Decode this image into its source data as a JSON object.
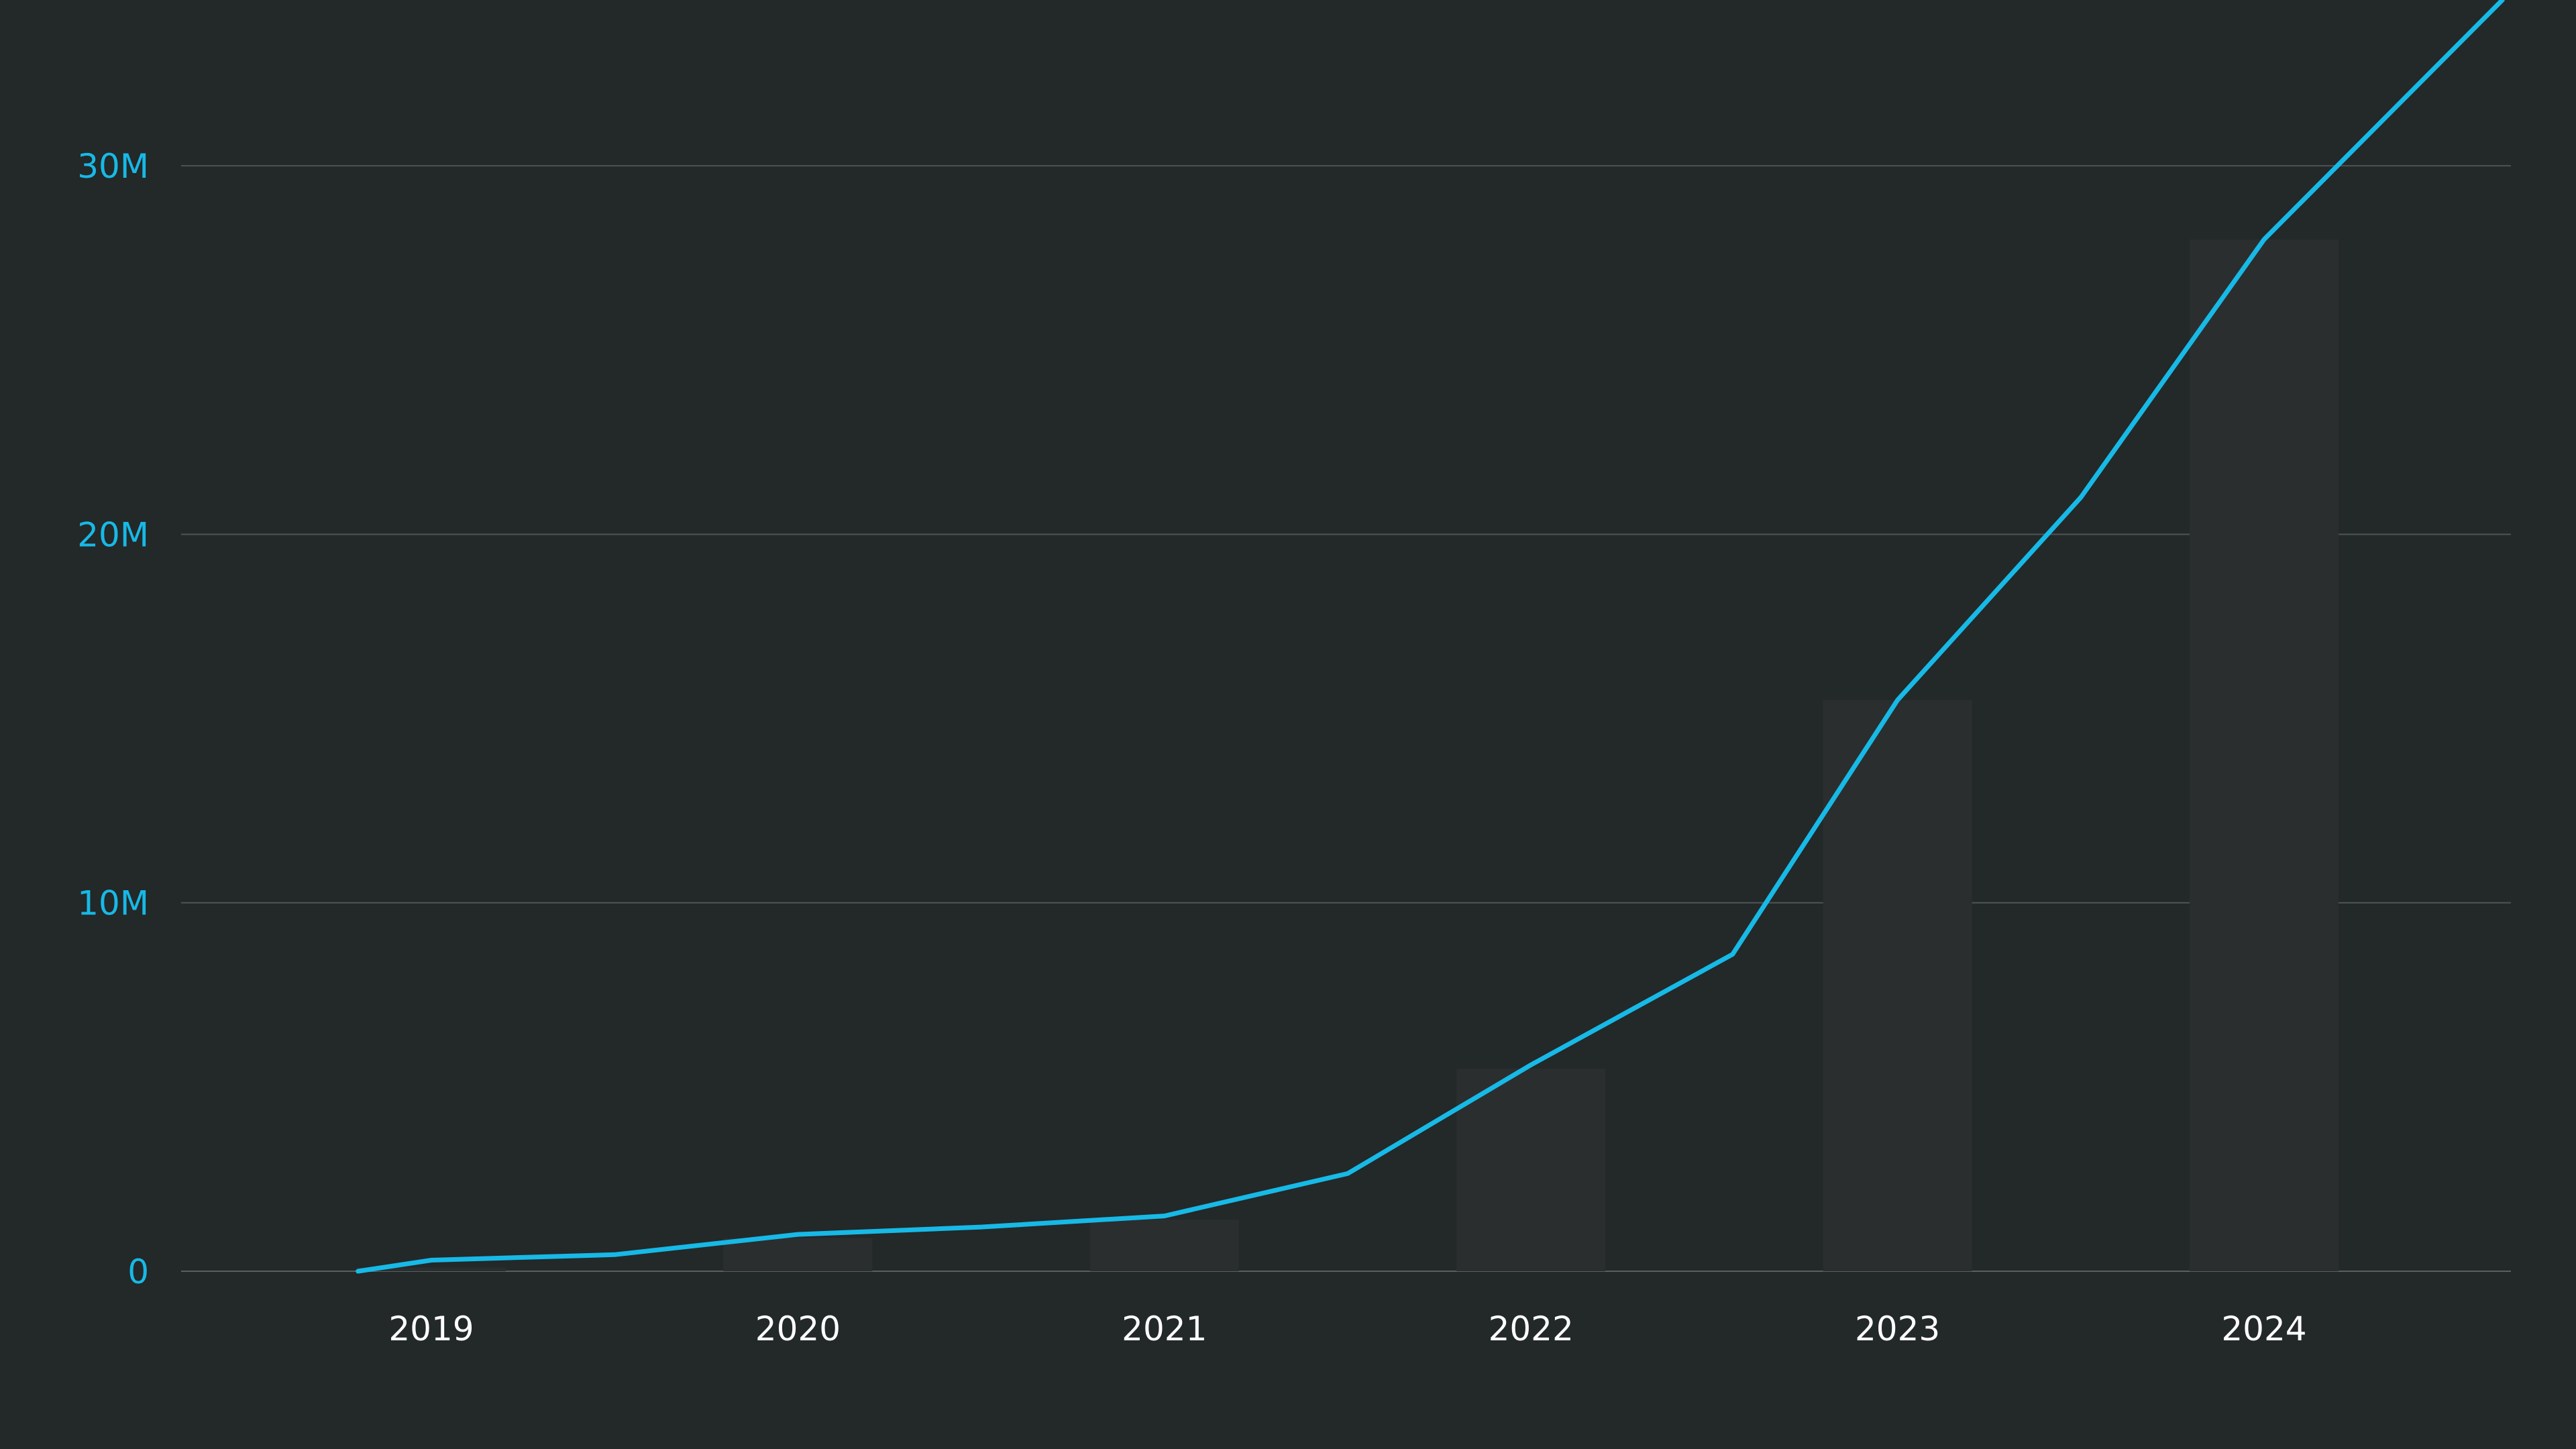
{
  "chart_data": {
    "type": "bar",
    "title": "",
    "xlabel": "",
    "ylabel": "",
    "categories": [
      "2019",
      "2020",
      "2021",
      "2022",
      "2023",
      "2024"
    ],
    "y_tick_labels": [
      "0",
      "10M",
      "20M",
      "30M"
    ],
    "y_tick_values": [
      0,
      10000000,
      20000000,
      30000000
    ],
    "ylim": [
      0,
      34500000
    ],
    "grid": true,
    "legend": "none",
    "series": [
      {
        "kind": "bar",
        "values": [
          100000,
          900000,
          1400000,
          5500000,
          15500000,
          28000000
        ]
      },
      {
        "kind": "line",
        "x": [
          2018.8,
          2019.0,
          2019.5,
          2020.0,
          2020.5,
          2021.0,
          2021.5,
          2022.0,
          2022.55,
          2023.0,
          2023.5,
          2024.0,
          2024.65
        ],
        "values": [
          0,
          300000,
          450000,
          1000000,
          1200000,
          1500000,
          2650000,
          5600000,
          8600000,
          15500000,
          21000000,
          28000000,
          34500000
        ]
      }
    ],
    "colors": {
      "background": "#232829",
      "line": "#17b9e6",
      "bar": "#2a2e2f",
      "grid": "#4e5456",
      "axis": "#5a6062",
      "y_tick_text": "#17b9e6",
      "x_tick_text": "#ffffff"
    }
  }
}
